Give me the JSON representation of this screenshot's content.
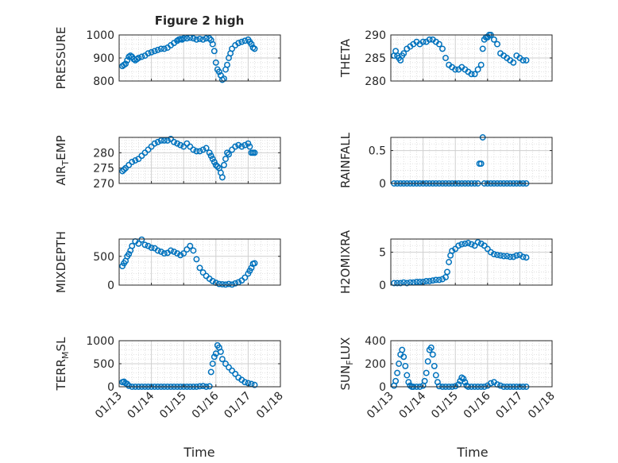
{
  "figure": {
    "title": "Figure 2 high",
    "xlabel": "Time",
    "x_tick_labels": [
      "01/13",
      "01/14",
      "01/15",
      "01/16",
      "01/17",
      "01/18"
    ],
    "marker_color": "#0072BD",
    "grid_color": "#d9d9d9",
    "axis_color": "#262626"
  },
  "chart_data": [
    {
      "type": "scatter",
      "id": "pressure",
      "ylabel": "PRESSURE",
      "ylim": [
        800,
        1000
      ],
      "yticks": [
        800,
        900,
        1000
      ],
      "xlim": [
        0,
        5
      ],
      "series": [
        {
          "x": [
            0.1,
            0.15,
            0.2,
            0.25,
            0.3,
            0.35,
            0.4,
            0.45,
            0.5,
            0.55,
            0.6,
            0.7,
            0.8,
            0.9,
            1.0,
            1.1,
            1.2,
            1.3,
            1.4,
            1.5,
            1.6,
            1.7,
            1.8,
            1.85,
            1.9,
            1.95,
            2.0,
            2.1,
            2.2,
            2.3,
            2.4,
            2.5,
            2.6,
            2.7,
            2.8,
            2.85,
            2.9,
            2.95,
            3.0,
            3.05,
            3.1,
            3.15,
            3.2,
            3.25,
            3.3,
            3.35,
            3.4,
            3.45,
            3.5,
            3.6,
            3.7,
            3.8,
            3.9,
            4.0,
            4.05,
            4.1,
            4.15,
            4.2
          ],
          "y": [
            865,
            870,
            875,
            890,
            905,
            910,
            905,
            895,
            890,
            895,
            900,
            905,
            910,
            920,
            925,
            930,
            935,
            940,
            940,
            945,
            955,
            965,
            975,
            980,
            982,
            980,
            985,
            985,
            988,
            985,
            980,
            983,
            980,
            985,
            985,
            978,
            960,
            930,
            880,
            850,
            840,
            825,
            805,
            810,
            850,
            870,
            900,
            920,
            940,
            955,
            965,
            970,
            975,
            980,
            970,
            960,
            945,
            940
          ]
        }
      ]
    },
    {
      "type": "scatter",
      "id": "theta",
      "ylabel": "THETA",
      "ylim": [
        280,
        290
      ],
      "yticks": [
        280,
        285,
        290
      ],
      "xlim": [
        0,
        5
      ],
      "series": [
        {
          "x": [
            0.1,
            0.15,
            0.2,
            0.25,
            0.3,
            0.35,
            0.4,
            0.5,
            0.6,
            0.7,
            0.8,
            0.9,
            1.0,
            1.1,
            1.2,
            1.3,
            1.4,
            1.5,
            1.6,
            1.7,
            1.8,
            1.9,
            2.0,
            2.1,
            2.2,
            2.3,
            2.4,
            2.5,
            2.6,
            2.7,
            2.8,
            2.85,
            2.9,
            2.95,
            3.0,
            3.05,
            3.1,
            3.2,
            3.3,
            3.4,
            3.5,
            3.6,
            3.7,
            3.8,
            3.9,
            4.0,
            4.1,
            4.2
          ],
          "y": [
            285.5,
            286.5,
            285.5,
            285,
            284.5,
            285.5,
            286,
            287,
            287.5,
            288,
            288.5,
            288,
            288.5,
            288.5,
            289,
            289,
            288.5,
            288,
            287,
            285,
            283.5,
            283,
            282.5,
            282.5,
            283,
            282.5,
            282,
            281.5,
            281.5,
            282.5,
            283.5,
            287,
            289,
            289.5,
            289.5,
            290,
            290,
            289,
            288,
            286,
            285.5,
            285,
            284.5,
            284,
            285.5,
            285,
            284.5,
            284.5
          ]
        }
      ]
    },
    {
      "type": "scatter",
      "id": "air_temp",
      "ylabel": "AIR_TEMP",
      "ylim": [
        270,
        285
      ],
      "yticks": [
        270,
        275,
        280
      ],
      "xlim": [
        0,
        5
      ],
      "series": [
        {
          "x": [
            0.1,
            0.15,
            0.2,
            0.3,
            0.4,
            0.5,
            0.6,
            0.7,
            0.8,
            0.9,
            1.0,
            1.1,
            1.2,
            1.3,
            1.4,
            1.5,
            1.6,
            1.7,
            1.8,
            1.9,
            2.0,
            2.1,
            2.2,
            2.3,
            2.4,
            2.5,
            2.6,
            2.7,
            2.8,
            2.85,
            2.9,
            2.95,
            3.0,
            3.05,
            3.1,
            3.15,
            3.2,
            3.25,
            3.3,
            3.35,
            3.4,
            3.5,
            3.6,
            3.7,
            3.8,
            3.9,
            4.0,
            4.05,
            4.1,
            4.15,
            4.2
          ],
          "y": [
            274,
            274.5,
            275,
            276,
            277,
            277.5,
            278,
            279,
            280,
            281,
            282,
            283,
            283.5,
            284,
            284,
            284,
            284.5,
            283.5,
            283,
            282.5,
            282,
            283,
            282,
            281,
            280.5,
            280.5,
            281,
            281.5,
            280,
            279,
            278,
            277,
            276,
            275.5,
            275,
            273.5,
            272,
            276,
            278,
            280,
            279.5,
            281,
            282,
            282.5,
            282,
            282.5,
            283,
            282,
            280,
            280,
            280
          ]
        }
      ]
    },
    {
      "type": "scatter",
      "id": "rainfall",
      "ylabel": "RAINFALL",
      "ylim": [
        0,
        0.7
      ],
      "yticks": [
        0,
        0.5
      ],
      "xlim": [
        0,
        5
      ],
      "series": [
        {
          "x": [
            0.1,
            0.2,
            0.3,
            0.4,
            0.5,
            0.6,
            0.7,
            0.8,
            0.9,
            1.0,
            1.1,
            1.2,
            1.3,
            1.4,
            1.5,
            1.6,
            1.7,
            1.8,
            1.9,
            2.0,
            2.1,
            2.2,
            2.3,
            2.4,
            2.5,
            2.6,
            2.7,
            2.75,
            2.8,
            2.85,
            2.9,
            3.0,
            3.1,
            3.2,
            3.3,
            3.4,
            3.5,
            3.6,
            3.7,
            3.8,
            3.9,
            4.0,
            4.1,
            4.2
          ],
          "y": [
            0,
            0,
            0,
            0,
            0,
            0,
            0,
            0,
            0,
            0,
            0,
            0,
            0,
            0,
            0,
            0,
            0,
            0,
            0,
            0,
            0,
            0,
            0,
            0,
            0,
            0,
            0,
            0.3,
            0.3,
            0.7,
            0,
            0,
            0,
            0,
            0,
            0,
            0,
            0,
            0,
            0,
            0,
            0,
            0,
            0
          ]
        }
      ]
    },
    {
      "type": "scatter",
      "id": "mixdepth",
      "ylabel": "MIXDEPTH",
      "ylim": [
        0,
        800
      ],
      "yticks": [
        0,
        500
      ],
      "xlim": [
        0,
        5
      ],
      "series": [
        {
          "x": [
            0.1,
            0.15,
            0.2,
            0.25,
            0.3,
            0.35,
            0.4,
            0.5,
            0.6,
            0.7,
            0.8,
            0.9,
            1.0,
            1.1,
            1.2,
            1.3,
            1.4,
            1.5,
            1.6,
            1.7,
            1.8,
            1.9,
            2.0,
            2.1,
            2.2,
            2.3,
            2.4,
            2.5,
            2.6,
            2.7,
            2.8,
            2.9,
            3.0,
            3.1,
            3.2,
            3.3,
            3.4,
            3.5,
            3.6,
            3.7,
            3.8,
            3.9,
            4.0,
            4.05,
            4.1,
            4.15,
            4.2
          ],
          "y": [
            330,
            380,
            420,
            500,
            540,
            600,
            680,
            760,
            720,
            790,
            700,
            680,
            650,
            640,
            600,
            580,
            550,
            560,
            600,
            580,
            550,
            520,
            550,
            620,
            680,
            600,
            450,
            300,
            220,
            160,
            110,
            70,
            40,
            20,
            15,
            10,
            20,
            10,
            30,
            50,
            80,
            130,
            200,
            250,
            300,
            370,
            380
          ]
        }
      ]
    },
    {
      "type": "scatter",
      "id": "h2omixra",
      "ylabel": "H2OMIXRA",
      "ylim": [
        0,
        7
      ],
      "yticks": [
        0,
        5
      ],
      "xlim": [
        0,
        5
      ],
      "series": [
        {
          "x": [
            0.1,
            0.2,
            0.3,
            0.4,
            0.5,
            0.6,
            0.7,
            0.8,
            0.9,
            1.0,
            1.1,
            1.2,
            1.3,
            1.4,
            1.5,
            1.6,
            1.7,
            1.75,
            1.8,
            1.85,
            1.9,
            2.0,
            2.1,
            2.2,
            2.3,
            2.4,
            2.5,
            2.6,
            2.7,
            2.8,
            2.9,
            3.0,
            3.1,
            3.2,
            3.3,
            3.4,
            3.5,
            3.6,
            3.7,
            3.8,
            3.9,
            4.0,
            4.1,
            4.2
          ],
          "y": [
            0.3,
            0.3,
            0.3,
            0.4,
            0.3,
            0.4,
            0.4,
            0.5,
            0.5,
            0.5,
            0.6,
            0.6,
            0.7,
            0.8,
            0.8,
            0.9,
            1.2,
            2.0,
            3.5,
            4.5,
            5.2,
            5.5,
            6.0,
            6.2,
            6.3,
            6.4,
            6.2,
            6.0,
            6.5,
            6.3,
            6.0,
            5.5,
            5.0,
            4.7,
            4.6,
            4.5,
            4.4,
            4.4,
            4.3,
            4.3,
            4.5,
            4.6,
            4.3,
            4.2
          ]
        }
      ]
    },
    {
      "type": "scatter",
      "id": "terr_msl",
      "ylabel": "TERR_MSL",
      "ylim": [
        0,
        1000
      ],
      "yticks": [
        0,
        500,
        1000
      ],
      "xlim": [
        0,
        5
      ],
      "series": [
        {
          "x": [
            0.1,
            0.15,
            0.2,
            0.25,
            0.3,
            0.4,
            0.5,
            0.6,
            0.7,
            0.8,
            0.9,
            1.0,
            1.1,
            1.2,
            1.3,
            1.4,
            1.5,
            1.6,
            1.7,
            1.8,
            1.9,
            2.0,
            2.1,
            2.2,
            2.3,
            2.4,
            2.5,
            2.6,
            2.7,
            2.8,
            2.85,
            2.9,
            2.95,
            3.0,
            3.05,
            3.1,
            3.15,
            3.2,
            3.3,
            3.4,
            3.5,
            3.6,
            3.7,
            3.8,
            3.9,
            4.0,
            4.1,
            4.2
          ],
          "y": [
            100,
            110,
            80,
            60,
            20,
            0,
            0,
            0,
            0,
            0,
            0,
            0,
            0,
            0,
            0,
            0,
            0,
            0,
            0,
            0,
            0,
            0,
            0,
            0,
            0,
            0,
            10,
            15,
            0,
            10,
            320,
            500,
            650,
            720,
            900,
            850,
            760,
            600,
            500,
            420,
            350,
            280,
            200,
            150,
            100,
            80,
            60,
            40
          ]
        }
      ]
    },
    {
      "type": "scatter",
      "id": "sun_flux",
      "ylabel": "SUN_FLUX",
      "ylim": [
        0,
        400
      ],
      "yticks": [
        0,
        200,
        400
      ],
      "xlim": [
        0,
        5
      ],
      "series": [
        {
          "x": [
            0.1,
            0.15,
            0.2,
            0.25,
            0.3,
            0.35,
            0.4,
            0.45,
            0.5,
            0.55,
            0.6,
            0.65,
            0.7,
            0.8,
            0.9,
            1.0,
            1.05,
            1.1,
            1.15,
            1.2,
            1.25,
            1.3,
            1.35,
            1.4,
            1.45,
            1.5,
            1.6,
            1.7,
            1.8,
            1.9,
            2.0,
            2.1,
            2.15,
            2.2,
            2.25,
            2.3,
            2.35,
            2.4,
            2.5,
            2.6,
            2.7,
            2.8,
            2.9,
            3.0,
            3.1,
            3.2,
            3.3,
            3.4,
            3.5,
            3.6,
            3.7,
            3.8,
            3.9,
            4.0,
            4.1,
            4.2
          ],
          "y": [
            10,
            50,
            120,
            200,
            280,
            320,
            260,
            180,
            100,
            40,
            10,
            0,
            0,
            0,
            0,
            10,
            50,
            120,
            220,
            320,
            340,
            280,
            180,
            100,
            40,
            5,
            0,
            0,
            0,
            0,
            5,
            20,
            50,
            80,
            70,
            40,
            10,
            0,
            0,
            0,
            0,
            0,
            0,
            10,
            30,
            40,
            20,
            10,
            0,
            0,
            0,
            0,
            0,
            0,
            0,
            0
          ]
        }
      ]
    }
  ]
}
